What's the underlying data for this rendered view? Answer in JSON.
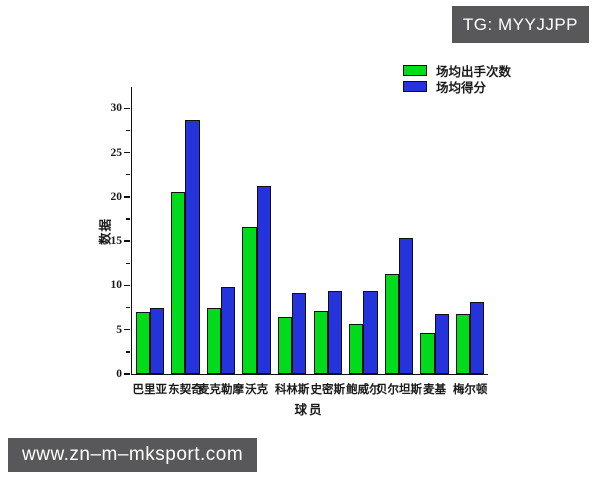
{
  "badges": {
    "top_text": "TG: MYYJJPP",
    "bottom_text": "www.zn–m–mksport.com",
    "bg_color": "#58585A",
    "text_color": "#FFFFFF"
  },
  "chart_data": {
    "type": "bar",
    "title": "",
    "xlabel": "球员",
    "ylabel": "数据",
    "categories": [
      "巴里亚",
      "东契奇",
      "麦克勒摩",
      "沃克",
      "科林斯",
      "史密斯",
      "鲍威尔",
      "贝尔坦斯",
      "麦基",
      "梅尔顿"
    ],
    "series": [
      {
        "name": "场均出手次数",
        "color": "#00DB1C",
        "values": [
          7.0,
          20.6,
          7.5,
          16.6,
          6.4,
          7.1,
          5.7,
          11.3,
          4.6,
          6.8
        ]
      },
      {
        "name": "场均得分",
        "color": "#2433DC",
        "values": [
          7.5,
          28.7,
          9.8,
          21.2,
          9.1,
          9.4,
          9.4,
          15.4,
          6.8,
          8.1
        ]
      }
    ],
    "ylim": [
      0,
      32.4
    ],
    "yticks": [
      0,
      5,
      10,
      15,
      20,
      25,
      30
    ],
    "major_tick_step": 5,
    "minor_tick_step": 2.5,
    "grid": "off",
    "legend_position": "top-right-outside",
    "bar_edge_color": "#101010"
  }
}
